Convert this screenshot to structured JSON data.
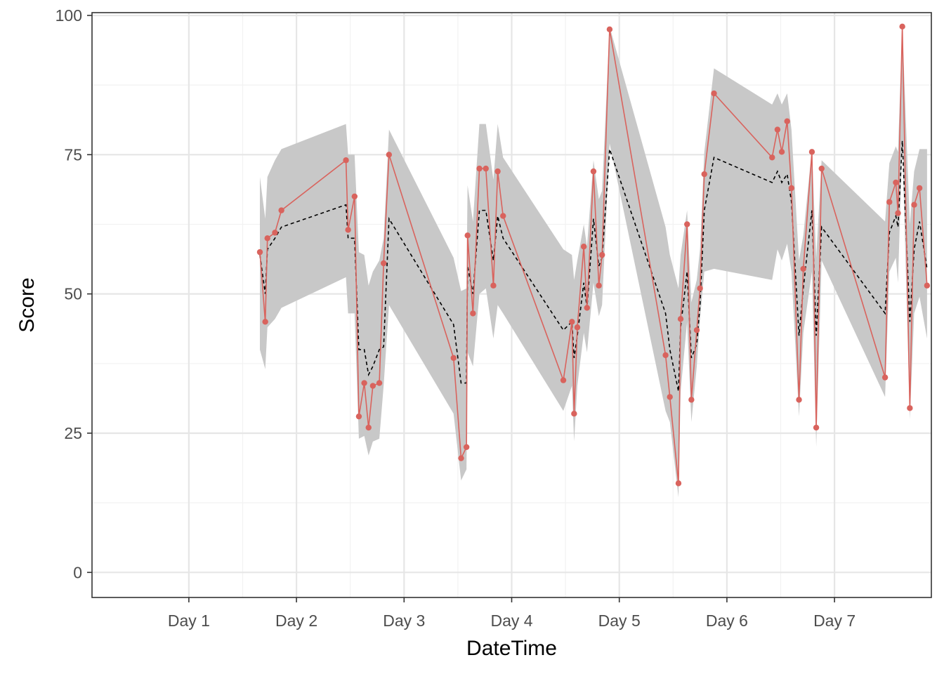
{
  "chart_data": {
    "type": "line",
    "title": "",
    "xlabel": "DateTime",
    "ylabel": "Score",
    "x_tick_labels": [
      "Day 1",
      "Day 2",
      "Day 3",
      "Day 4",
      "Day 5",
      "Day 6",
      "Day 7"
    ],
    "y_ticks": [
      0,
      25,
      50,
      75,
      100
    ],
    "xlim": [
      0.1,
      7.9
    ],
    "ylim": [
      -4.5,
      100.5
    ],
    "grid": true,
    "legend": "none",
    "colors": {
      "observed": "#d9635d",
      "fitted": "#000000",
      "band": "#c8c8c8",
      "grid_major": "#e6e6e6",
      "grid_minor": "#f2f2f2",
      "panel_border": "#333333"
    },
    "x": [
      1.66,
      1.71,
      1.73,
      1.8,
      1.86,
      2.46,
      2.48,
      2.54,
      2.58,
      2.63,
      2.67,
      2.71,
      2.77,
      2.81,
      2.86,
      3.46,
      3.53,
      3.58,
      3.59,
      3.64,
      3.7,
      3.76,
      3.83,
      3.87,
      3.92,
      4.48,
      4.56,
      4.58,
      4.61,
      4.67,
      4.7,
      4.76,
      4.81,
      4.84,
      4.91,
      5.43,
      5.47,
      5.55,
      5.57,
      5.63,
      5.67,
      5.72,
      5.75,
      5.79,
      5.88,
      6.42,
      6.47,
      6.51,
      6.56,
      6.6,
      6.67,
      6.71,
      6.79,
      6.83,
      6.88,
      7.47,
      7.51,
      7.57,
      7.59,
      7.63,
      7.7,
      7.74,
      7.79,
      7.86
    ],
    "observed": [
      57.5,
      45.0,
      60.0,
      61.0,
      65.0,
      74.0,
      61.5,
      67.5,
      28.0,
      34.0,
      26.0,
      33.5,
      34.0,
      55.5,
      75.0,
      38.5,
      20.5,
      22.5,
      60.5,
      46.5,
      72.5,
      72.5,
      51.5,
      72.0,
      64.0,
      34.5,
      45.0,
      28.5,
      44.0,
      58.5,
      47.5,
      72.0,
      51.5,
      57.0,
      97.5,
      39.0,
      31.5,
      16.0,
      45.5,
      62.5,
      31.0,
      43.5,
      51.0,
      71.5,
      86.0,
      74.5,
      79.5,
      75.5,
      81.0,
      69.0,
      31.0,
      54.5,
      75.5,
      26.0,
      72.5,
      35.0,
      66.5,
      70.0,
      64.5,
      98.0,
      29.5,
      66.0,
      69.0,
      51.5
    ],
    "fitted": [
      57.0,
      50.0,
      58.0,
      60.0,
      62.0,
      66.0,
      60.0,
      60.0,
      40.0,
      40.0,
      35.5,
      37.0,
      40.0,
      40.5,
      63.5,
      44.5,
      34.0,
      34.0,
      55.0,
      50.0,
      65.0,
      65.0,
      56.0,
      64.0,
      60.0,
      43.5,
      45.0,
      38.5,
      42.5,
      52.0,
      47.5,
      63.5,
      55.0,
      56.5,
      76.0,
      46.5,
      40.0,
      32.5,
      44.0,
      54.0,
      38.5,
      41.0,
      48.0,
      65.0,
      74.5,
      70.0,
      72.0,
      70.0,
      71.5,
      66.5,
      42.5,
      51.0,
      65.0,
      42.5,
      62.0,
      46.5,
      61.0,
      64.0,
      62.0,
      77.5,
      45.0,
      58.0,
      63.0,
      54.5
    ],
    "band_lower": [
      40.0,
      36.5,
      44.0,
      45.5,
      47.5,
      53.0,
      46.5,
      46.5,
      24.0,
      24.5,
      21.0,
      23.5,
      24.0,
      33.5,
      48.0,
      28.5,
      16.5,
      18.5,
      39.5,
      37.0,
      50.0,
      51.0,
      42.0,
      48.0,
      46.5,
      29.0,
      33.5,
      23.5,
      33.5,
      43.0,
      39.5,
      52.0,
      46.0,
      48.0,
      77.0,
      29.0,
      27.0,
      13.5,
      32.5,
      45.0,
      27.0,
      37.0,
      45.5,
      54.0,
      54.5,
      52.5,
      58.0,
      56.0,
      59.0,
      54.0,
      28.0,
      43.0,
      54.0,
      22.5,
      56.0,
      31.5,
      54.0,
      56.5,
      52.0,
      77.5,
      27.5,
      46.5,
      49.5,
      42.0
    ],
    "band_upper": [
      71.0,
      63.5,
      71.0,
      74.0,
      76.0,
      80.5,
      75.0,
      75.0,
      57.5,
      57.0,
      51.5,
      54.0,
      56.0,
      60.0,
      79.5,
      56.5,
      50.5,
      51.0,
      69.5,
      63.0,
      80.5,
      80.5,
      70.5,
      80.5,
      74.5,
      58.0,
      57.0,
      52.5,
      56.0,
      62.5,
      58.5,
      74.0,
      67.0,
      68.5,
      98.0,
      62.0,
      57.0,
      51.0,
      57.0,
      65.0,
      48.5,
      52.5,
      58.0,
      75.5,
      90.5,
      84.0,
      86.0,
      84.0,
      86.0,
      79.5,
      56.0,
      60.5,
      76.0,
      56.5,
      74.0,
      63.0,
      73.5,
      76.5,
      75.5,
      98.0,
      62.5,
      72.0,
      76.0,
      76.0
    ]
  }
}
